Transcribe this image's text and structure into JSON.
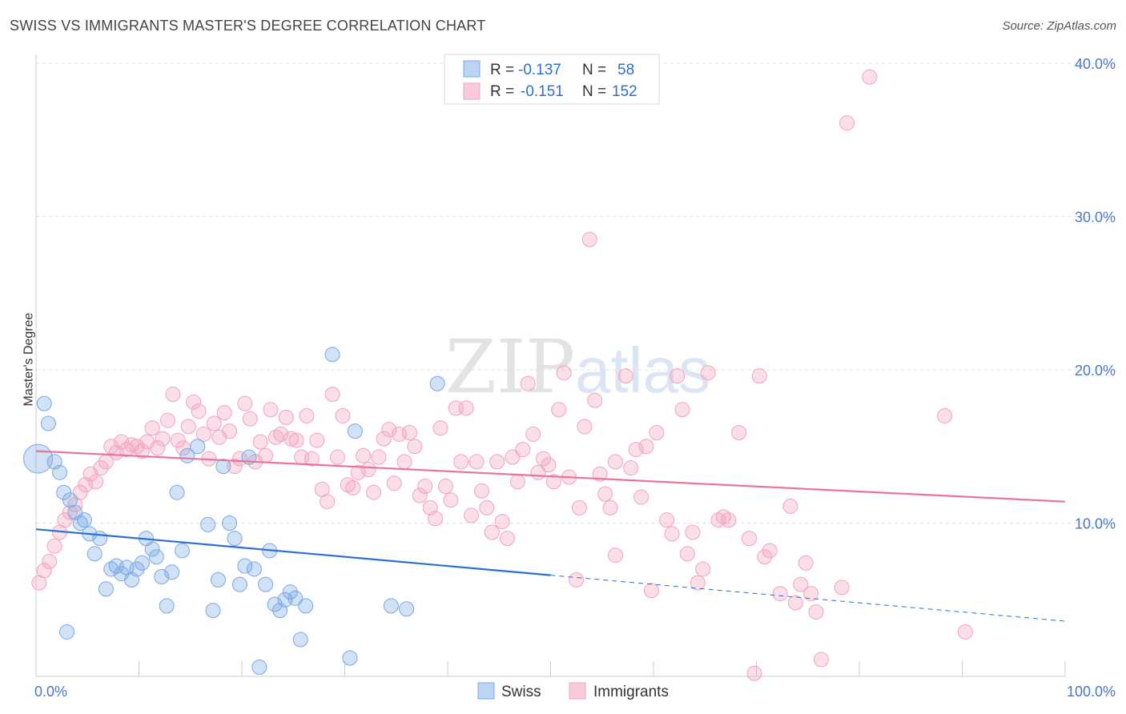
{
  "title": "SWISS VS IMMIGRANTS MASTER'S DEGREE CORRELATION CHART",
  "source": "Source: ZipAtlas.com",
  "watermark": {
    "left": "ZIP",
    "right": "atlas"
  },
  "colors": {
    "swiss": "#7aa8e6",
    "immigrants": "#f2a3bd",
    "swiss_line": "#2a6fd1",
    "immigrants_line": "#e8749c",
    "tick": "#4a78c8"
  },
  "chart_data": {
    "type": "scatter",
    "ylabel": "Master's Degree",
    "xlim": [
      0,
      100
    ],
    "ylim": [
      0,
      40
    ],
    "x_ticks": [
      "0.0%",
      "100.0%"
    ],
    "y_ticks": [
      {
        "v": 10,
        "label": "10.0%"
      },
      {
        "v": 20,
        "label": "20.0%"
      },
      {
        "v": 30,
        "label": "30.0%"
      },
      {
        "v": 40,
        "label": "40.0%"
      }
    ],
    "legend": {
      "rows": [
        {
          "r_label": "R = ",
          "r": "-0.137",
          "n_label": "N = ",
          "n": "58"
        },
        {
          "r_label": "R = ",
          "r": "-0.151",
          "n_label": "N = ",
          "n": "152"
        }
      ]
    },
    "series": [
      {
        "name": "Swiss",
        "trend": {
          "x0": 0,
          "y0": 9.6,
          "x1": 50,
          "y1": 6.6,
          "dash_to": 100,
          "dash_y": 3.6
        },
        "points": [
          [
            0.2,
            14.2
          ],
          [
            0.8,
            17.8
          ],
          [
            1.2,
            16.5
          ],
          [
            1.8,
            14.0
          ],
          [
            2.3,
            13.3
          ],
          [
            2.7,
            12.0
          ],
          [
            3.3,
            11.5
          ],
          [
            3.8,
            10.7
          ],
          [
            4.3,
            10.0
          ],
          [
            4.7,
            10.2
          ],
          [
            5.2,
            9.3
          ],
          [
            5.7,
            8.0
          ],
          [
            6.2,
            9.0
          ],
          [
            6.8,
            5.7
          ],
          [
            7.3,
            7.0
          ],
          [
            7.8,
            7.2
          ],
          [
            8.3,
            6.7
          ],
          [
            8.8,
            7.1
          ],
          [
            9.3,
            6.3
          ],
          [
            9.8,
            7.0
          ],
          [
            10.3,
            7.4
          ],
          [
            10.7,
            9.0
          ],
          [
            11.3,
            8.3
          ],
          [
            11.7,
            7.8
          ],
          [
            12.2,
            6.5
          ],
          [
            12.7,
            4.6
          ],
          [
            13.2,
            6.8
          ],
          [
            13.7,
            12.0
          ],
          [
            14.2,
            8.2
          ],
          [
            14.7,
            14.4
          ],
          [
            15.7,
            15.0
          ],
          [
            16.7,
            9.9
          ],
          [
            17.2,
            4.3
          ],
          [
            17.7,
            6.3
          ],
          [
            18.2,
            13.7
          ],
          [
            18.8,
            10.0
          ],
          [
            19.3,
            9.0
          ],
          [
            19.8,
            6.0
          ],
          [
            20.3,
            7.2
          ],
          [
            20.7,
            14.3
          ],
          [
            21.2,
            7.0
          ],
          [
            21.7,
            0.6
          ],
          [
            22.3,
            6.0
          ],
          [
            22.7,
            8.2
          ],
          [
            23.2,
            4.7
          ],
          [
            23.7,
            4.3
          ],
          [
            24.2,
            5.0
          ],
          [
            24.7,
            5.5
          ],
          [
            25.2,
            5.1
          ],
          [
            25.7,
            2.4
          ],
          [
            26.2,
            4.6
          ],
          [
            28.8,
            21.0
          ],
          [
            30.5,
            1.2
          ],
          [
            31.0,
            16.0
          ],
          [
            34.5,
            4.6
          ],
          [
            36.0,
            4.4
          ],
          [
            39.0,
            19.1
          ],
          [
            3.0,
            2.9
          ]
        ]
      },
      {
        "name": "Immigrants",
        "trend": {
          "x0": 0,
          "y0": 14.7,
          "x1": 100,
          "y1": 11.4
        },
        "points": [
          [
            0.3,
            6.1
          ],
          [
            0.8,
            6.9
          ],
          [
            1.3,
            7.5
          ],
          [
            1.8,
            8.5
          ],
          [
            2.3,
            9.4
          ],
          [
            2.8,
            10.2
          ],
          [
            3.3,
            10.7
          ],
          [
            3.8,
            11.2
          ],
          [
            4.3,
            12.0
          ],
          [
            4.8,
            12.5
          ],
          [
            5.3,
            13.2
          ],
          [
            5.8,
            12.7
          ],
          [
            6.3,
            13.6
          ],
          [
            6.8,
            14.0
          ],
          [
            7.3,
            15.0
          ],
          [
            7.8,
            14.6
          ],
          [
            8.3,
            15.3
          ],
          [
            8.8,
            14.8
          ],
          [
            9.3,
            15.1
          ],
          [
            9.8,
            15.0
          ],
          [
            10.3,
            14.7
          ],
          [
            10.8,
            15.3
          ],
          [
            11.3,
            16.2
          ],
          [
            11.8,
            14.9
          ],
          [
            12.3,
            15.5
          ],
          [
            12.8,
            16.7
          ],
          [
            13.3,
            18.4
          ],
          [
            13.8,
            15.4
          ],
          [
            14.3,
            14.9
          ],
          [
            14.8,
            16.3
          ],
          [
            15.3,
            17.9
          ],
          [
            15.8,
            17.3
          ],
          [
            16.3,
            15.8
          ],
          [
            16.8,
            14.2
          ],
          [
            17.3,
            16.5
          ],
          [
            17.8,
            15.6
          ],
          [
            18.3,
            17.2
          ],
          [
            18.8,
            16.0
          ],
          [
            19.3,
            13.7
          ],
          [
            19.8,
            14.2
          ],
          [
            20.3,
            17.8
          ],
          [
            20.8,
            16.8
          ],
          [
            21.3,
            14.0
          ],
          [
            21.8,
            15.3
          ],
          [
            22.3,
            14.4
          ],
          [
            22.8,
            17.4
          ],
          [
            23.3,
            15.6
          ],
          [
            23.8,
            15.8
          ],
          [
            24.3,
            16.9
          ],
          [
            24.8,
            15.5
          ],
          [
            25.3,
            15.4
          ],
          [
            25.8,
            14.3
          ],
          [
            26.3,
            17.0
          ],
          [
            26.8,
            14.2
          ],
          [
            27.3,
            15.4
          ],
          [
            27.8,
            12.2
          ],
          [
            28.3,
            11.4
          ],
          [
            28.8,
            18.4
          ],
          [
            29.3,
            14.3
          ],
          [
            29.8,
            17.0
          ],
          [
            30.3,
            12.5
          ],
          [
            30.8,
            12.3
          ],
          [
            31.3,
            13.3
          ],
          [
            31.8,
            14.4
          ],
          [
            32.3,
            13.5
          ],
          [
            32.8,
            12.0
          ],
          [
            33.3,
            14.3
          ],
          [
            33.8,
            15.5
          ],
          [
            34.3,
            16.1
          ],
          [
            34.8,
            12.6
          ],
          [
            35.3,
            15.8
          ],
          [
            35.8,
            14.0
          ],
          [
            36.3,
            15.9
          ],
          [
            36.8,
            15.0
          ],
          [
            37.3,
            11.8
          ],
          [
            37.8,
            12.4
          ],
          [
            38.3,
            11.0
          ],
          [
            38.8,
            10.3
          ],
          [
            39.3,
            16.2
          ],
          [
            39.8,
            12.4
          ],
          [
            40.3,
            11.5
          ],
          [
            40.8,
            17.5
          ],
          [
            41.3,
            14.0
          ],
          [
            41.8,
            17.5
          ],
          [
            42.3,
            10.5
          ],
          [
            42.8,
            14.0
          ],
          [
            43.3,
            12.1
          ],
          [
            43.8,
            11.0
          ],
          [
            44.3,
            9.4
          ],
          [
            44.8,
            14.0
          ],
          [
            45.3,
            10.1
          ],
          [
            45.8,
            9.0
          ],
          [
            46.3,
            14.3
          ],
          [
            46.8,
            12.7
          ],
          [
            47.3,
            14.8
          ],
          [
            47.8,
            19.1
          ],
          [
            48.3,
            15.8
          ],
          [
            48.8,
            13.3
          ],
          [
            49.3,
            14.2
          ],
          [
            49.8,
            13.8
          ],
          [
            50.3,
            12.7
          ],
          [
            50.8,
            17.4
          ],
          [
            51.3,
            19.8
          ],
          [
            51.8,
            13.0
          ],
          [
            52.8,
            11.0
          ],
          [
            53.3,
            16.3
          ],
          [
            53.8,
            28.5
          ],
          [
            54.3,
            18.0
          ],
          [
            54.8,
            13.2
          ],
          [
            55.3,
            11.9
          ],
          [
            55.8,
            11.0
          ],
          [
            56.3,
            14.0
          ],
          [
            57.3,
            19.6
          ],
          [
            57.8,
            13.6
          ],
          [
            58.3,
            14.8
          ],
          [
            58.8,
            11.7
          ],
          [
            59.3,
            15.0
          ],
          [
            59.8,
            5.6
          ],
          [
            60.3,
            15.9
          ],
          [
            61.3,
            10.2
          ],
          [
            61.8,
            9.3
          ],
          [
            62.3,
            19.6
          ],
          [
            62.8,
            17.4
          ],
          [
            63.3,
            8.0
          ],
          [
            63.8,
            9.4
          ],
          [
            64.3,
            6.1
          ],
          [
            64.8,
            7.0
          ],
          [
            65.3,
            19.8
          ],
          [
            66.3,
            10.2
          ],
          [
            66.8,
            10.4
          ],
          [
            67.3,
            10.2
          ],
          [
            68.3,
            15.9
          ],
          [
            69.3,
            9.0
          ],
          [
            69.8,
            0.2
          ],
          [
            70.3,
            19.6
          ],
          [
            70.8,
            7.8
          ],
          [
            71.3,
            8.2
          ],
          [
            72.3,
            5.4
          ],
          [
            73.3,
            11.1
          ],
          [
            73.8,
            4.8
          ],
          [
            74.3,
            6.0
          ],
          [
            74.8,
            7.4
          ],
          [
            75.3,
            5.4
          ],
          [
            75.8,
            4.2
          ],
          [
            76.3,
            1.1
          ],
          [
            78.8,
            36.1
          ],
          [
            81.0,
            39.1
          ],
          [
            88.3,
            17.0
          ],
          [
            90.3,
            2.9
          ],
          [
            78.3,
            5.8
          ],
          [
            52.5,
            6.3
          ],
          [
            56.3,
            7.9
          ]
        ]
      }
    ]
  }
}
